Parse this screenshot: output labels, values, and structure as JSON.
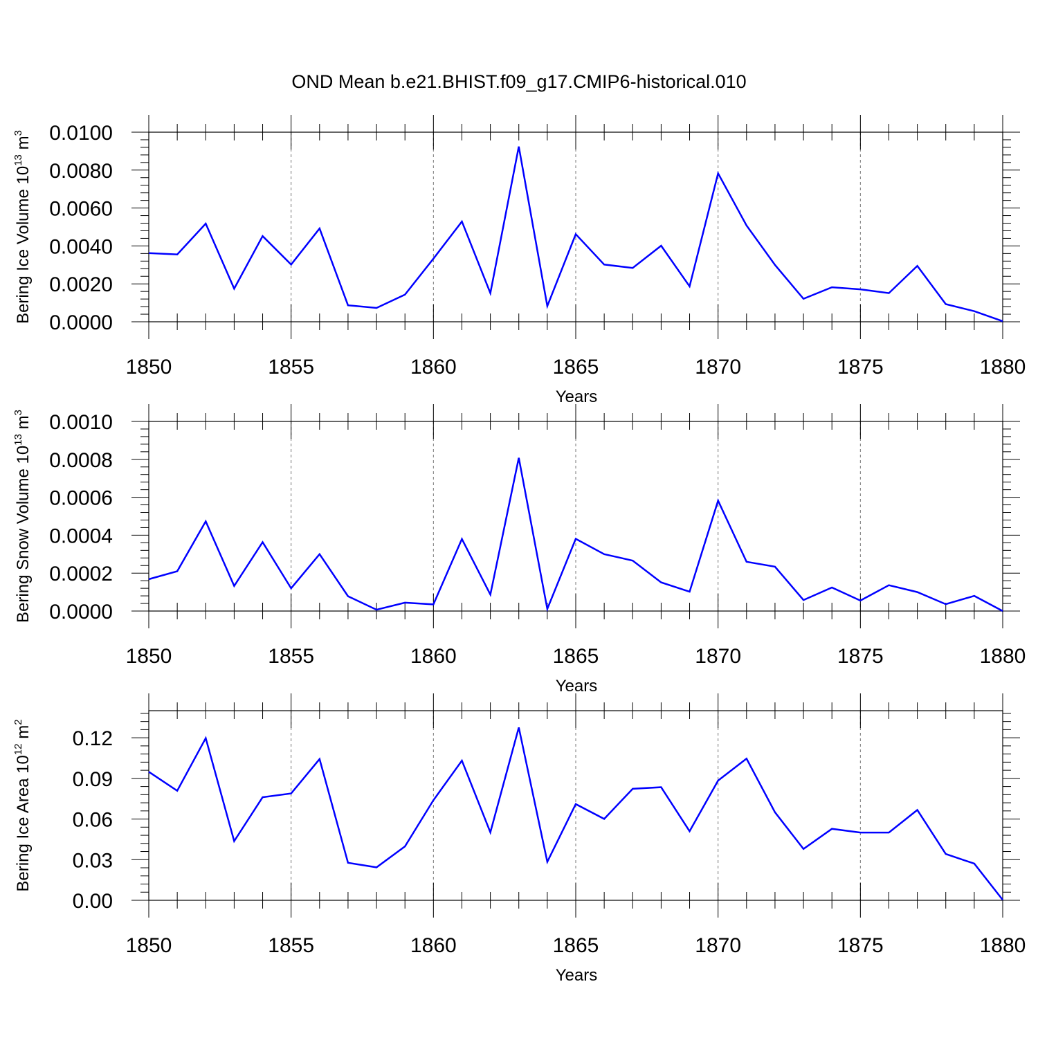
{
  "chart_data": {
    "title": "OND Mean b.e21.BHIST.f09_g17.CMIP6-historical.010",
    "series_color": "#0000ff",
    "x": [
      1850,
      1851,
      1852,
      1853,
      1854,
      1855,
      1856,
      1857,
      1858,
      1859,
      1860,
      1861,
      1862,
      1863,
      1864,
      1865,
      1866,
      1867,
      1868,
      1869,
      1870,
      1871,
      1872,
      1873,
      1874,
      1875,
      1876,
      1877,
      1878,
      1879,
      1880
    ],
    "panels": [
      {
        "type": "line",
        "ylabel": {
          "main": "Bering Ice Volume 10",
          "exp": "13",
          "unit": " m",
          "unit_exp": "3"
        },
        "xlabel": "Years",
        "xlim": [
          1850,
          1880
        ],
        "ylim": [
          0,
          0.01
        ],
        "xticks": [
          "1850",
          "1855",
          "1860",
          "1865",
          "1870",
          "1875",
          "1880"
        ],
        "yticks": [
          "0.0000",
          "0.0020",
          "0.0040",
          "0.0060",
          "0.0080",
          "0.0100"
        ],
        "values": [
          0.00362,
          0.00355,
          0.00518,
          0.00175,
          0.00452,
          0.00302,
          0.00492,
          0.00087,
          0.00073,
          0.00143,
          0.00333,
          0.00529,
          0.00151,
          0.00924,
          0.00083,
          0.00462,
          0.00302,
          0.00284,
          0.00401,
          0.00187,
          0.00783,
          0.00508,
          0.003,
          0.00121,
          0.00182,
          0.00171,
          0.00151,
          0.00295,
          0.00093,
          0.00056,
          3e-05
        ]
      },
      {
        "type": "line",
        "ylabel": {
          "main": "Bering Snow Volume 10",
          "exp": "13",
          "unit": " m",
          "unit_exp": "3"
        },
        "xlabel": "Years",
        "xlim": [
          1850,
          1880
        ],
        "ylim": [
          0,
          0.001
        ],
        "xticks": [
          "1850",
          "1855",
          "1860",
          "1865",
          "1870",
          "1875",
          "1880"
        ],
        "yticks": [
          "0.0000",
          "0.0002",
          "0.0004",
          "0.0006",
          "0.0008",
          "0.0010"
        ],
        "values": [
          0.000168,
          0.00021,
          0.000473,
          0.000132,
          0.000363,
          0.00012,
          0.0003,
          7.8e-05,
          7e-06,
          4.4e-05,
          3.5e-05,
          0.00038,
          8.7e-05,
          0.000808,
          1.1e-05,
          0.000381,
          0.0003,
          0.000266,
          0.000151,
          0.000102,
          0.000582,
          0.00026,
          0.000234,
          5.8e-05,
          0.000124,
          5.5e-05,
          0.000136,
          0.0001,
          3.6e-05,
          8e-05,
          0.0
        ]
      },
      {
        "type": "line",
        "ylabel": {
          "main": "Bering Ice Area 10",
          "exp": "12",
          "unit": " m",
          "unit_exp": "2"
        },
        "xlabel": "Years",
        "xlim": [
          1850,
          1880
        ],
        "ylim": [
          0,
          0.14
        ],
        "xticks": [
          "1850",
          "1855",
          "1860",
          "1865",
          "1870",
          "1875",
          "1880"
        ],
        "yticks": [
          "0.00",
          "0.03",
          "0.06",
          "0.09",
          "0.12"
        ],
        "values": [
          0.0949,
          0.0809,
          0.1197,
          0.0437,
          0.0761,
          0.0789,
          0.1043,
          0.0277,
          0.0243,
          0.0398,
          0.0739,
          0.1031,
          0.0502,
          0.1276,
          0.0284,
          0.071,
          0.0601,
          0.0823,
          0.0835,
          0.051,
          0.0884,
          0.1046,
          0.065,
          0.0379,
          0.0528,
          0.05,
          0.05,
          0.0667,
          0.0342,
          0.0271,
          0.0003
        ]
      }
    ]
  }
}
